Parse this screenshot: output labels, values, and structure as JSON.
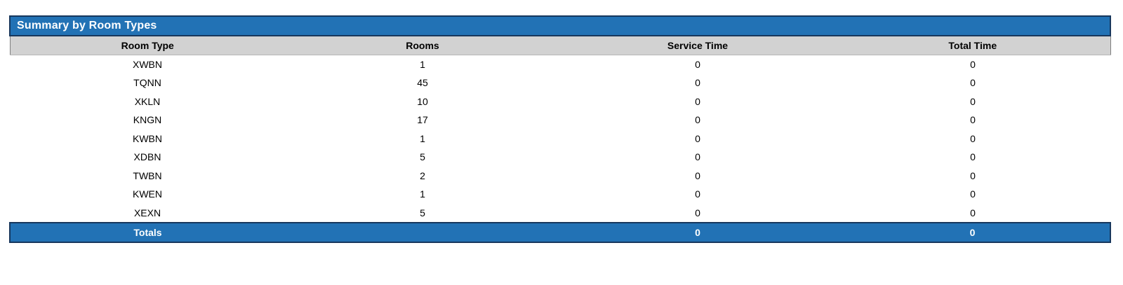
{
  "report": {
    "title": "Summary by Room Types",
    "columns": {
      "room_type": "Room Type",
      "rooms": "Rooms",
      "service_time": "Service Time",
      "total_time": "Total Time"
    },
    "rows": [
      {
        "room_type": "XWBN",
        "rooms": "1",
        "service_time": "0",
        "total_time": "0"
      },
      {
        "room_type": "TQNN",
        "rooms": "45",
        "service_time": "0",
        "total_time": "0"
      },
      {
        "room_type": "XKLN",
        "rooms": "10",
        "service_time": "0",
        "total_time": "0"
      },
      {
        "room_type": "KNGN",
        "rooms": "17",
        "service_time": "0",
        "total_time": "0"
      },
      {
        "room_type": "KWBN",
        "rooms": "1",
        "service_time": "0",
        "total_time": "0"
      },
      {
        "room_type": "XDBN",
        "rooms": "5",
        "service_time": "0",
        "total_time": "0"
      },
      {
        "room_type": "TWBN",
        "rooms": "2",
        "service_time": "0",
        "total_time": "0"
      },
      {
        "room_type": "KWEN",
        "rooms": "1",
        "service_time": "0",
        "total_time": "0"
      },
      {
        "room_type": "XEXN",
        "rooms": "5",
        "service_time": "0",
        "total_time": "0"
      }
    ],
    "totals": {
      "label": "Totals",
      "rooms": "",
      "service_time": "0",
      "total_time": "0"
    }
  },
  "colors": {
    "accent_blue": "#2272b5",
    "border_navy": "#17375d",
    "header_gray": "#d2d2d2"
  }
}
